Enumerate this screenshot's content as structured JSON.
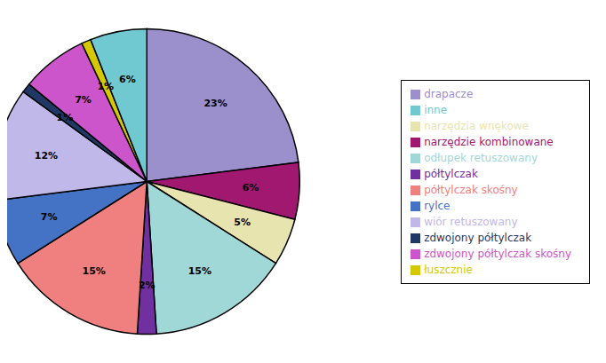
{
  "chart_data": {
    "type": "pie",
    "categories": [
      "drapacze",
      "narzędzie kombinowane",
      "narzędzia wnękowe",
      "odłupek retuszowany",
      "półtylczak",
      "półtylczak skośny",
      "rylce",
      "wiór retuszowany",
      "zdwojony półtylczak",
      "zdwojony półtylczak skośny",
      "łuszcznie",
      "inne"
    ],
    "values": [
      23,
      6,
      5,
      15,
      2,
      15,
      7,
      12,
      1,
      7,
      1,
      6
    ],
    "value_labels": [
      "23%",
      "6%",
      "5%",
      "15%",
      "2%",
      "15%",
      "7%",
      "12%",
      "1%",
      "7%",
      "1%",
      "6%"
    ],
    "colors": [
      "#9b8fcc",
      "#a01870",
      "#e8e4b0",
      "#a0d8d8",
      "#7030a0",
      "#f08080",
      "#4472c4",
      "#c0b8e8",
      "#1f3864",
      "#cc55cc",
      "#d4c800",
      "#70c8d0"
    ],
    "data_labels": true,
    "legend": "right"
  }
}
